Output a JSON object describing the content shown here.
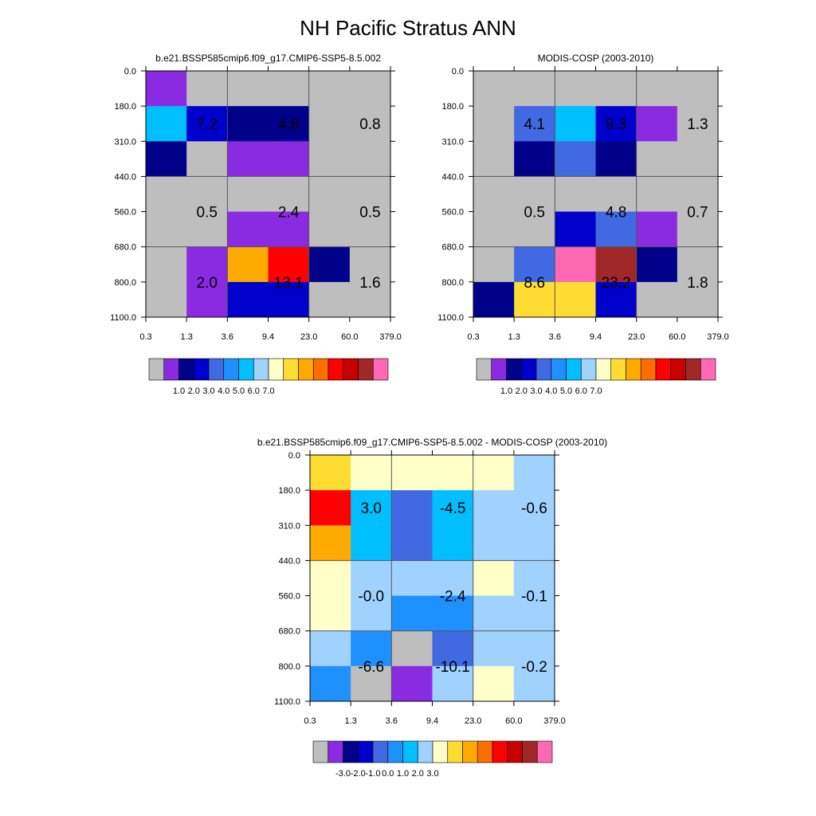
{
  "title": "NH Pacific Stratus ANN",
  "x_ticks": [
    "0.3",
    "1.3",
    "3.6",
    "9.4",
    "23.0",
    "60.0",
    "379.0"
  ],
  "y_ticks": [
    "0.0",
    "180.0",
    "310.0",
    "440.0",
    "560.0",
    "680.0",
    "800.0",
    "1100.0"
  ],
  "chart_data": [
    {
      "type": "heatmap",
      "id": "model",
      "title": "b.e21.BSSP585cmip6.f09_g17.CMIP6-SSP5-8.5.002",
      "xlabel": "",
      "ylabel": "",
      "x_edges": [
        "0.3",
        "1.3",
        "3.6",
        "9.4",
        "23.0",
        "60.0",
        "379.0"
      ],
      "y_edges": [
        "0.0",
        "180.0",
        "310.0",
        "440.0",
        "560.0",
        "680.0",
        "800.0",
        "1100.0"
      ],
      "cell_color_index": [
        [
          1,
          0,
          0,
          0,
          0,
          0
        ],
        [
          6,
          3,
          2,
          2,
          0,
          0
        ],
        [
          2,
          0,
          1,
          1,
          0,
          0
        ],
        [
          0,
          0,
          0,
          0,
          0,
          0
        ],
        [
          0,
          0,
          1,
          1,
          0,
          0
        ],
        [
          0,
          1,
          10,
          12,
          2,
          0
        ],
        [
          0,
          1,
          3,
          3,
          0,
          0
        ]
      ],
      "block_labels": [
        {
          "text": "7.2",
          "col": 1,
          "row": 1
        },
        {
          "text": "4.8",
          "col": 3,
          "row": 1
        },
        {
          "text": "0.8",
          "col": 5,
          "row": 1
        },
        {
          "text": "0.5",
          "col": 1,
          "row": 3.5
        },
        {
          "text": "2.4",
          "col": 3,
          "row": 3.5
        },
        {
          "text": "0.5",
          "col": 5,
          "row": 3.5
        },
        {
          "text": "2.0",
          "col": 1,
          "row": 5.5
        },
        {
          "text": "13.1",
          "col": 3,
          "row": 5.5
        },
        {
          "text": "1.6",
          "col": 5,
          "row": 5.5
        }
      ],
      "colorbar": {
        "labels": [
          "1.0",
          "2.0",
          "3.0",
          "4.0",
          "5.0",
          "6.0",
          "7.0"
        ],
        "colors": [
          "#bebebe",
          "#8a2be2",
          "#00008b",
          "#0000cd",
          "#4169e1",
          "#1e90ff",
          "#00bfff",
          "#a0d2ff",
          "#ffffc8",
          "#ffdc32",
          "#ffaa00",
          "#ff6e00",
          "#ff0000",
          "#c80000",
          "#a02828",
          "#ff69b4"
        ]
      }
    },
    {
      "type": "heatmap",
      "id": "obs",
      "title": "MODIS-COSP (2003-2010)",
      "xlabel": "",
      "ylabel": "",
      "x_edges": [
        "0.3",
        "1.3",
        "3.6",
        "9.4",
        "23.0",
        "60.0",
        "379.0"
      ],
      "y_edges": [
        "0.0",
        "180.0",
        "310.0",
        "440.0",
        "560.0",
        "680.0",
        "800.0",
        "1100.0"
      ],
      "cell_color_index": [
        [
          0,
          0,
          0,
          0,
          0,
          0
        ],
        [
          0,
          4,
          6,
          3,
          1,
          0
        ],
        [
          0,
          2,
          4,
          2,
          0,
          0
        ],
        [
          0,
          0,
          0,
          0,
          0,
          0
        ],
        [
          0,
          0,
          3,
          4,
          1,
          0
        ],
        [
          0,
          4,
          15,
          14,
          2,
          0
        ],
        [
          2,
          9,
          9,
          3,
          0,
          0
        ]
      ],
      "block_labels": [
        {
          "text": "4.1",
          "col": 1,
          "row": 1
        },
        {
          "text": "9.3",
          "col": 3,
          "row": 1
        },
        {
          "text": "1.3",
          "col": 5,
          "row": 1
        },
        {
          "text": "0.5",
          "col": 1,
          "row": 3.5
        },
        {
          "text": "4.8",
          "col": 3,
          "row": 3.5
        },
        {
          "text": "0.7",
          "col": 5,
          "row": 3.5
        },
        {
          "text": "8.6",
          "col": 1,
          "row": 5.5
        },
        {
          "text": "23.2",
          "col": 3,
          "row": 5.5
        },
        {
          "text": "1.8",
          "col": 5,
          "row": 5.5
        }
      ],
      "colorbar": {
        "labels": [
          "1.0",
          "2.0",
          "3.0",
          "4.0",
          "5.0",
          "6.0",
          "7.0"
        ],
        "colors": [
          "#bebebe",
          "#8a2be2",
          "#00008b",
          "#0000cd",
          "#4169e1",
          "#1e90ff",
          "#00bfff",
          "#a0d2ff",
          "#ffffc8",
          "#ffdc32",
          "#ffaa00",
          "#ff6e00",
          "#ff0000",
          "#c80000",
          "#a02828",
          "#ff69b4"
        ]
      }
    },
    {
      "type": "heatmap",
      "id": "diff",
      "title": "b.e21.BSSP585cmip6.f09_g17.CMIP6-SSP5-8.5.002 - MODIS-COSP (2003-2010)",
      "xlabel": "",
      "ylabel": "",
      "x_edges": [
        "0.3",
        "1.3",
        "3.6",
        "9.4",
        "23.0",
        "60.0",
        "379.0"
      ],
      "y_edges": [
        "0.0",
        "180.0",
        "310.0",
        "440.0",
        "560.0",
        "680.0",
        "800.0",
        "1100.0"
      ],
      "cell_color_index": [
        [
          9,
          8,
          8,
          8,
          8,
          7
        ],
        [
          12,
          6,
          4,
          6,
          7,
          7
        ],
        [
          10,
          6,
          4,
          6,
          7,
          7
        ],
        [
          8,
          7,
          7,
          7,
          8,
          7
        ],
        [
          8,
          7,
          5,
          5,
          7,
          7
        ],
        [
          7,
          5,
          0,
          4,
          7,
          7
        ],
        [
          5,
          0,
          1,
          7,
          8,
          7
        ]
      ],
      "block_labels": [
        {
          "text": "3.0",
          "col": 1,
          "row": 1
        },
        {
          "text": "-4.5",
          "col": 3,
          "row": 1
        },
        {
          "text": "-0.6",
          "col": 5,
          "row": 1
        },
        {
          "text": "-0.0",
          "col": 1,
          "row": 3.5
        },
        {
          "text": "-2.4",
          "col": 3,
          "row": 3.5
        },
        {
          "text": "-0.1",
          "col": 5,
          "row": 3.5
        },
        {
          "text": "-6.6",
          "col": 1,
          "row": 5.5
        },
        {
          "text": "-10.1",
          "col": 3,
          "row": 5.5
        },
        {
          "text": "-0.2",
          "col": 5,
          "row": 5.5
        }
      ],
      "colorbar": {
        "labels": [
          "-3.0",
          "-2.0",
          "-1.0",
          "0.0",
          "1.0",
          "2.0",
          "3.0"
        ],
        "colors": [
          "#bebebe",
          "#8a2be2",
          "#00008b",
          "#0000cd",
          "#4169e1",
          "#1e90ff",
          "#00bfff",
          "#a0d2ff",
          "#ffffc8",
          "#ffdc32",
          "#ffaa00",
          "#ff6e00",
          "#ff0000",
          "#c80000",
          "#a02828",
          "#ff69b4"
        ]
      }
    }
  ]
}
